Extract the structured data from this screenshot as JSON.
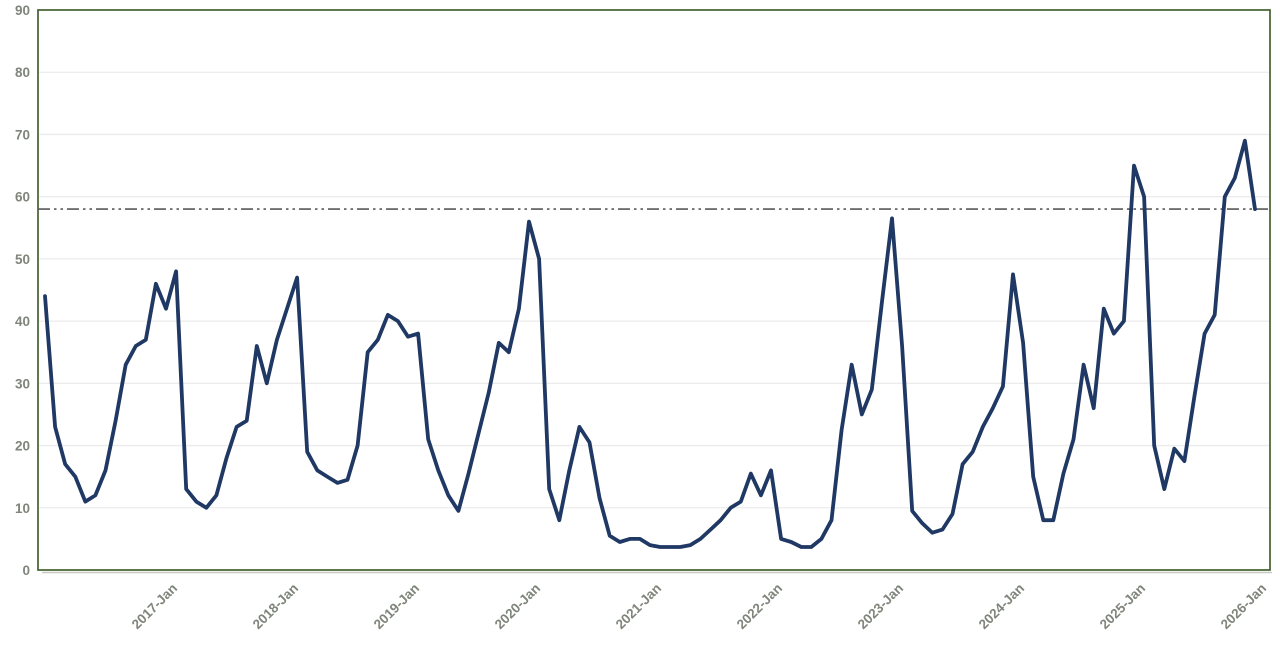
{
  "chart_data": {
    "type": "line",
    "title": "",
    "xlabel": "",
    "ylabel": "",
    "ylim": [
      0,
      90
    ],
    "y_ticks": [
      0,
      10,
      20,
      30,
      40,
      50,
      60,
      70,
      80,
      90
    ],
    "grid": "horizontal",
    "legend": "none",
    "x_tick_labels": [
      {
        "label": "2017-Jan",
        "month_index": 13
      },
      {
        "label": "2018-Jan",
        "month_index": 25
      },
      {
        "label": "2019-Jan",
        "month_index": 37
      },
      {
        "label": "2020-Jan",
        "month_index": 49
      },
      {
        "label": "2021-Jan",
        "month_index": 61
      },
      {
        "label": "2022-Jan",
        "month_index": 73
      },
      {
        "label": "2023-Jan",
        "month_index": 85
      },
      {
        "label": "2024-Jan",
        "month_index": 97
      },
      {
        "label": "2025-Jan",
        "month_index": 109
      },
      {
        "label": "2026-Jan",
        "month_index": 121
      }
    ],
    "months": [
      "2015-12",
      "2016-01",
      "2016-02",
      "2016-03",
      "2016-04",
      "2016-05",
      "2016-06",
      "2016-07",
      "2016-08",
      "2016-09",
      "2016-10",
      "2016-11",
      "2016-12",
      "2017-01",
      "2017-02",
      "2017-03",
      "2017-04",
      "2017-05",
      "2017-06",
      "2017-07",
      "2017-08",
      "2017-09",
      "2017-10",
      "2017-11",
      "2017-12",
      "2018-01",
      "2018-02",
      "2018-03",
      "2018-04",
      "2018-05",
      "2018-06",
      "2018-07",
      "2018-08",
      "2018-09",
      "2018-10",
      "2018-11",
      "2018-12",
      "2019-01",
      "2019-02",
      "2019-03",
      "2019-04",
      "2019-05",
      "2019-06",
      "2019-07",
      "2019-08",
      "2019-09",
      "2019-10",
      "2019-11",
      "2019-12",
      "2020-01",
      "2020-02",
      "2020-03",
      "2020-04",
      "2020-05",
      "2020-06",
      "2020-07",
      "2020-08",
      "2020-09",
      "2020-10",
      "2020-11",
      "2020-12",
      "2021-01",
      "2021-02",
      "2021-03",
      "2021-04",
      "2021-05",
      "2021-06",
      "2021-07",
      "2021-08",
      "2021-09",
      "2021-10",
      "2021-11",
      "2021-12",
      "2022-01",
      "2022-02",
      "2022-03",
      "2022-04",
      "2022-05",
      "2022-06",
      "2022-07",
      "2022-08",
      "2022-09",
      "2022-10",
      "2022-11",
      "2022-12",
      "2023-01",
      "2023-02",
      "2023-03",
      "2023-04",
      "2023-05",
      "2023-06",
      "2023-07",
      "2023-08",
      "2023-09",
      "2023-10",
      "2023-11",
      "2023-12",
      "2024-01",
      "2024-02",
      "2024-03",
      "2024-04",
      "2024-05",
      "2024-06",
      "2024-07",
      "2024-08",
      "2024-09",
      "2024-10",
      "2024-11",
      "2024-12",
      "2025-01",
      "2025-02",
      "2025-03",
      "2025-04",
      "2025-05",
      "2025-06",
      "2025-07",
      "2025-08",
      "2025-09",
      "2025-10",
      "2025-11",
      "2025-12"
    ],
    "values": [
      44,
      23,
      17,
      15,
      11,
      12,
      16,
      24,
      33,
      36,
      37,
      46,
      42,
      48,
      13,
      11,
      10,
      12,
      18,
      23,
      24,
      36,
      30,
      37,
      42,
      47,
      19,
      16,
      15,
      14,
      14.5,
      20,
      35,
      37,
      41,
      40,
      37.5,
      38,
      21,
      16,
      12,
      9.5,
      15.5,
      22,
      28.5,
      36.5,
      35,
      42,
      56,
      50,
      13,
      8,
      16,
      23,
      20.5,
      11.5,
      5.5,
      4.5,
      5,
      5,
      4,
      3.7,
      3.7,
      3.7,
      4,
      5,
      6.5,
      8,
      10,
      11,
      15.5,
      12,
      16,
      5,
      4.5,
      3.7,
      3.7,
      5,
      8,
      22.5,
      33,
      25,
      29,
      43,
      56.5,
      36,
      9.5,
      7.5,
      6,
      6.5,
      9,
      17,
      19,
      23,
      26,
      29.5,
      47.5,
      36.5,
      15,
      8,
      8,
      15.5,
      21,
      33,
      26,
      42,
      38,
      40,
      65,
      60,
      20,
      13,
      19.5,
      17.5,
      28,
      38,
      41,
      60,
      63,
      69,
      58
    ],
    "reference_line": {
      "value": 58,
      "style": "dash-dot-dot",
      "color": "#595959"
    },
    "colors": {
      "series_line": "#1f3864",
      "plot_border": "#375623",
      "plot_border_shadow": "#aeb5a8",
      "gridline": "#ececec",
      "tick_label": "#7f857a",
      "background": "#ffffff"
    }
  }
}
